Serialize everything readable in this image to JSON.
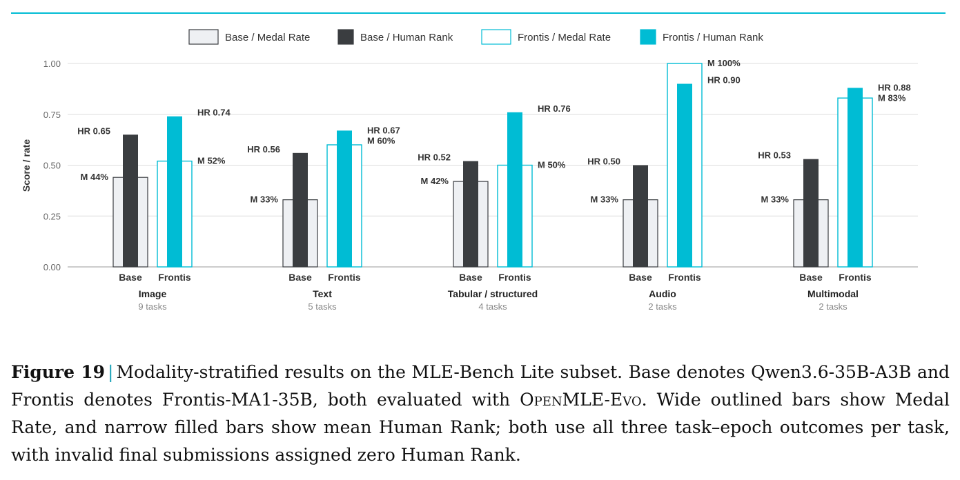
{
  "colors": {
    "accent": "#00bcd4",
    "dark": "#3a3d40",
    "light_fill": "#eef0f3",
    "outline_dark": "#3a3d40",
    "grid": "#dddddd",
    "topline": "#00bcd4"
  },
  "legend": [
    {
      "label": "Base / Medal Rate",
      "style": "base-medal"
    },
    {
      "label": "Base / Human Rank",
      "style": "base-human"
    },
    {
      "label": "Frontis / Medal Rate",
      "style": "frontis-medal"
    },
    {
      "label": "Frontis / Human Rank",
      "style": "frontis-human"
    }
  ],
  "chart_data": {
    "type": "bar",
    "ylabel": "Score / rate",
    "ylim": [
      0,
      1.0
    ],
    "yticks": [
      "0.00",
      "0.25",
      "0.50",
      "0.75",
      "1.00"
    ],
    "grid": true,
    "legend_position": "top",
    "groups": [
      {
        "name": "Image",
        "sub": "9 tasks",
        "base": {
          "medal": 0.44,
          "medal_label": "M 44%",
          "hr": 0.65,
          "hr_label": "HR 0.65"
        },
        "frontis": {
          "medal": 0.52,
          "medal_label": "M 52%",
          "hr": 0.74,
          "hr_label": "HR 0.74"
        }
      },
      {
        "name": "Text",
        "sub": "5 tasks",
        "base": {
          "medal": 0.33,
          "medal_label": "M 33%",
          "hr": 0.56,
          "hr_label": "HR 0.56"
        },
        "frontis": {
          "medal": 0.6,
          "medal_label": "M 60%",
          "hr": 0.67,
          "hr_label": "HR 0.67"
        }
      },
      {
        "name": "Tabular / structured",
        "sub": "4 tasks",
        "base": {
          "medal": 0.42,
          "medal_label": "M 42%",
          "hr": 0.52,
          "hr_label": "HR 0.52"
        },
        "frontis": {
          "medal": 0.5,
          "medal_label": "M 50%",
          "hr": 0.76,
          "hr_label": "HR 0.76"
        }
      },
      {
        "name": "Audio",
        "sub": "2 tasks",
        "base": {
          "medal": 0.33,
          "medal_label": "M 33%",
          "hr": 0.5,
          "hr_label": "HR 0.50"
        },
        "frontis": {
          "medal": 1.0,
          "medal_label": "M 100%",
          "hr": 0.9,
          "hr_label": "HR 0.90"
        }
      },
      {
        "name": "Multimodal",
        "sub": "2 tasks",
        "base": {
          "medal": 0.33,
          "medal_label": "M 33%",
          "hr": 0.53,
          "hr_label": "HR 0.53"
        },
        "frontis": {
          "medal": 0.83,
          "medal_label": "M 83%",
          "hr": 0.88,
          "hr_label": "HR 0.88"
        }
      }
    ],
    "subtick_labels": {
      "base": "Base",
      "frontis": "Frontis"
    }
  },
  "caption": {
    "figure_label": "Figure 19",
    "separator": "|",
    "text_part1": "Modality-stratified results on the MLE-Bench Lite subset. Base denotes Qwen3.6-35B-A3B and Frontis denotes Frontis-MA1-35B, both evaluated with ",
    "smallcaps_term": "OpenMLE-Evo",
    "text_part2": ". Wide outlined bars show Medal Rate, and narrow filled bars show mean Human Rank; both use all three task–epoch outcomes per task, with invalid final submissions assigned zero Human Rank."
  }
}
